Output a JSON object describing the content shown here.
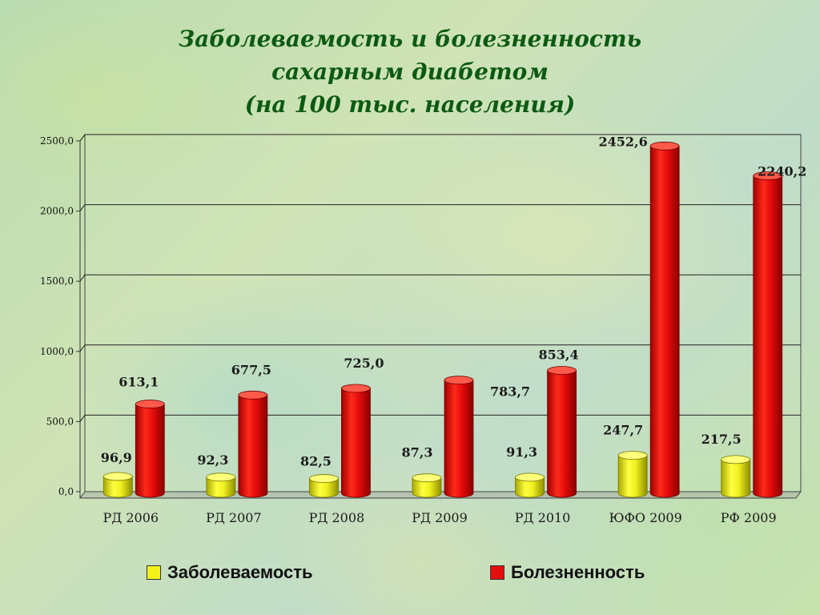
{
  "title": {
    "line1": "Заболеваемость и болезненность",
    "line2": "сахарным диабетом",
    "line3": "(на 100 тыс. населения)"
  },
  "colors": {
    "incidence": "#f2f21a",
    "prevalence": "#e60d0d",
    "text": "#0b5a12"
  },
  "chart_data": {
    "type": "bar",
    "title": "Заболеваемость и болезненность сахарным диабетом (на 100 тыс. населения)",
    "categories": [
      "РД 2006",
      "РД 2007",
      "РД 2008",
      "РД 2009",
      "РД 2010",
      "ЮФО 2009",
      "РФ 2009"
    ],
    "series": [
      {
        "name": "Заболеваемость",
        "values": [
          96.9,
          92.3,
          82.5,
          87.3,
          91.3,
          247.7,
          217.5
        ],
        "labels": [
          "96,9",
          "92,3",
          "82,5",
          "87,3",
          "91,3",
          "247,7",
          "217,5"
        ]
      },
      {
        "name": "Болезненность",
        "values": [
          613.1,
          677.5,
          725.0,
          783.7,
          853.4,
          2452.6,
          2240.2
        ],
        "labels": [
          "613,1",
          "677,5",
          "725,0",
          "783,7",
          "853,4",
          "2452,6",
          "2240,2"
        ]
      }
    ],
    "yticks": [
      "0,0",
      "500,0",
      "1000,0",
      "1500,0",
      "2000,0",
      "2500,0"
    ],
    "ylim": [
      0,
      2500
    ],
    "grid": true,
    "legend_position": "bottom"
  }
}
